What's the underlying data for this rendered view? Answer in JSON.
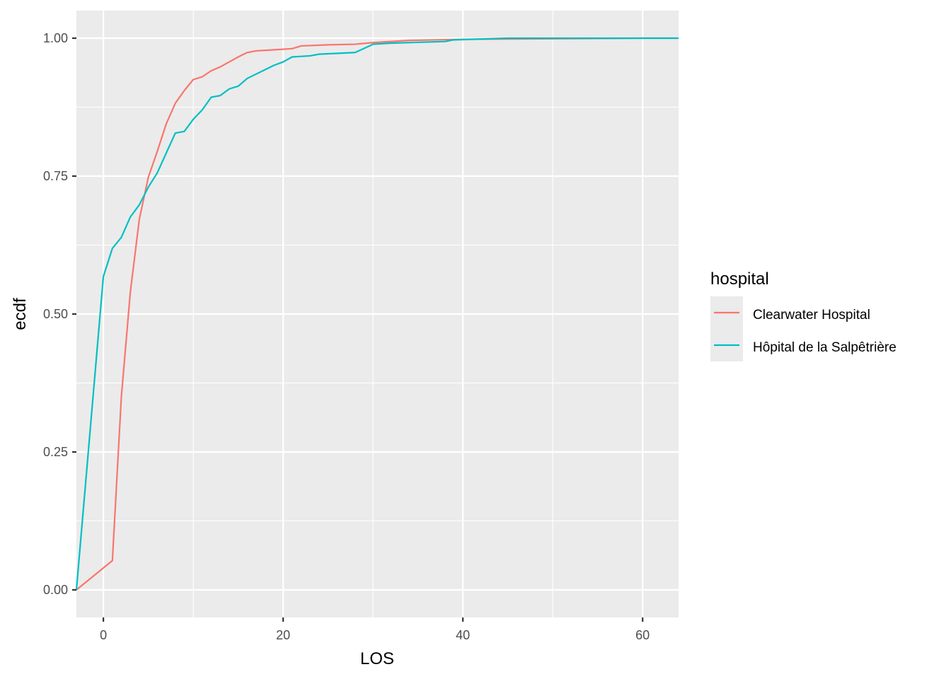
{
  "chart_data": {
    "type": "line",
    "title": "",
    "xlabel": "LOS",
    "ylabel": "ecdf",
    "xlim": [
      -3,
      64
    ],
    "ylim": [
      -0.05,
      1.05
    ],
    "x_ticks": [
      0,
      20,
      40,
      60
    ],
    "x_tick_labels": [
      "0",
      "20",
      "40",
      "60"
    ],
    "y_ticks": [
      0,
      0.25,
      0.5,
      0.75,
      1.0
    ],
    "y_tick_labels": [
      "0.00",
      "0.25",
      "0.50",
      "0.75",
      "1.00"
    ],
    "grid": true,
    "legend_position": "right",
    "legend_title": "hospital",
    "colors": {
      "panel_bg": "#ebebeb",
      "grid": "#ffffff"
    },
    "series": [
      {
        "name": "Clearwater Hospital",
        "color": "#f8766d",
        "points": [
          [
            -3,
            0.0
          ],
          [
            1,
            0.053
          ],
          [
            2,
            0.35
          ],
          [
            3,
            0.54
          ],
          [
            4,
            0.672
          ],
          [
            5,
            0.748
          ],
          [
            6,
            0.795
          ],
          [
            7,
            0.845
          ],
          [
            8,
            0.882
          ],
          [
            9,
            0.905
          ],
          [
            10,
            0.925
          ],
          [
            11,
            0.93
          ],
          [
            12,
            0.941
          ],
          [
            13,
            0.948
          ],
          [
            14,
            0.957
          ],
          [
            15,
            0.966
          ],
          [
            16,
            0.974
          ],
          [
            17,
            0.977
          ],
          [
            18,
            0.978
          ],
          [
            20,
            0.98
          ],
          [
            21,
            0.981
          ],
          [
            22,
            0.986
          ],
          [
            25,
            0.988
          ],
          [
            28,
            0.989
          ],
          [
            30,
            0.992
          ],
          [
            34,
            0.996
          ],
          [
            40,
            0.998
          ],
          [
            50,
            0.999
          ],
          [
            60,
            1.0
          ],
          [
            64,
            1.0
          ]
        ]
      },
      {
        "name": "Hôpital de la Salpêtrière",
        "color": "#00bfc4",
        "points": [
          [
            -3,
            0.0
          ],
          [
            0,
            0.568
          ],
          [
            1,
            0.619
          ],
          [
            2,
            0.639
          ],
          [
            3,
            0.676
          ],
          [
            4,
            0.698
          ],
          [
            5,
            0.73
          ],
          [
            6,
            0.756
          ],
          [
            7,
            0.792
          ],
          [
            8,
            0.828
          ],
          [
            9,
            0.831
          ],
          [
            10,
            0.853
          ],
          [
            11,
            0.87
          ],
          [
            12,
            0.893
          ],
          [
            13,
            0.896
          ],
          [
            14,
            0.908
          ],
          [
            15,
            0.913
          ],
          [
            16,
            0.927
          ],
          [
            17,
            0.935
          ],
          [
            18,
            0.943
          ],
          [
            19,
            0.951
          ],
          [
            20,
            0.957
          ],
          [
            21,
            0.966
          ],
          [
            23,
            0.968
          ],
          [
            24,
            0.971
          ],
          [
            28,
            0.974
          ],
          [
            30,
            0.989
          ],
          [
            32,
            0.991
          ],
          [
            38,
            0.994
          ],
          [
            39,
            0.997
          ],
          [
            45,
            1.0
          ],
          [
            64,
            1.0
          ]
        ]
      }
    ]
  }
}
